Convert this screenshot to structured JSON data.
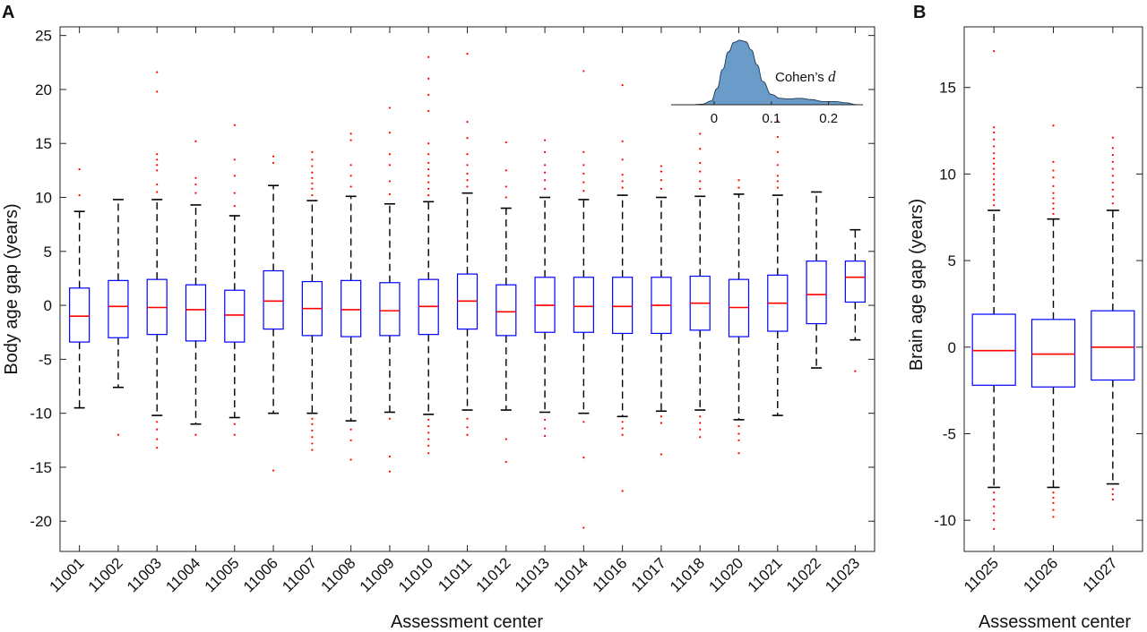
{
  "panels": {
    "a": {
      "letter": "A"
    },
    "b": {
      "letter": "B"
    }
  },
  "chart_data": [
    {
      "type": "box",
      "panel": "A",
      "xlabel": "Assessment center",
      "ylabel": "Body age gap (years)",
      "ylim": [
        -22.8,
        25.8
      ],
      "yticks": [
        25,
        20,
        15,
        10,
        5,
        0,
        -5,
        -10,
        -15,
        -20
      ],
      "grid": false,
      "colors": {
        "box": "#0000ff",
        "median": "#ff0000",
        "whisker": "#000000",
        "outlier": "#ff0000"
      },
      "categories": [
        "11001",
        "11002",
        "11003",
        "11004",
        "11005",
        "11006",
        "11007",
        "11008",
        "11009",
        "11010",
        "11011",
        "11012",
        "11013",
        "11014",
        "11016",
        "11017",
        "11018",
        "11020",
        "11021",
        "11022",
        "11023"
      ],
      "boxes": [
        {
          "q1": -3.4,
          "median": -1.0,
          "q3": 1.6,
          "whisker_low": -9.5,
          "whisker_high": 8.7,
          "outliers": [
            10.2,
            12.6
          ]
        },
        {
          "q1": -3.0,
          "median": -0.1,
          "q3": 2.3,
          "whisker_low": -7.6,
          "whisker_high": 9.8,
          "outliers": [
            -12.0
          ]
        },
        {
          "q1": -2.7,
          "median": -0.2,
          "q3": 2.4,
          "whisker_low": -10.2,
          "whisker_high": 9.8,
          "outliers": [
            10.5,
            11.2,
            12.5,
            13.0,
            13.5,
            14.0,
            19.8,
            21.6,
            -10.8,
            -11.5,
            -12.4,
            -13.2
          ]
        },
        {
          "q1": -3.3,
          "median": -0.4,
          "q3": 1.9,
          "whisker_low": -11.0,
          "whisker_high": 9.3,
          "outliers": [
            10.4,
            11.2,
            11.8,
            15.2,
            -12.0
          ]
        },
        {
          "q1": -3.4,
          "median": -0.9,
          "q3": 1.4,
          "whisker_low": -10.4,
          "whisker_high": 8.3,
          "outliers": [
            9.2,
            10.4,
            12.0,
            13.5,
            16.7,
            -11.0,
            -12.0
          ]
        },
        {
          "q1": -2.2,
          "median": 0.4,
          "q3": 3.2,
          "whisker_low": -10.0,
          "whisker_high": 11.1,
          "outliers": [
            13.2,
            13.8,
            -15.3
          ]
        },
        {
          "q1": -2.8,
          "median": -0.3,
          "q3": 2.2,
          "whisker_low": -10.0,
          "whisker_high": 9.7,
          "outliers": [
            10.2,
            10.8,
            11.3,
            11.8,
            12.3,
            12.9,
            13.5,
            14.2,
            -10.5,
            -11.0,
            -11.6,
            -12.2,
            -12.8,
            -13.4
          ]
        },
        {
          "q1": -2.9,
          "median": -0.4,
          "q3": 2.3,
          "whisker_low": -10.7,
          "whisker_high": 10.1,
          "outliers": [
            11.0,
            12.0,
            13.0,
            15.3,
            15.9,
            -11.5,
            -12.5,
            -14.3
          ]
        },
        {
          "q1": -2.8,
          "median": -0.5,
          "q3": 2.1,
          "whisker_low": -9.9,
          "whisker_high": 9.4,
          "outliers": [
            10.3,
            11.5,
            13.0,
            14.0,
            16.0,
            18.3,
            -10.5,
            -14.0,
            -15.4
          ]
        },
        {
          "q1": -2.7,
          "median": -0.1,
          "q3": 2.4,
          "whisker_low": -10.1,
          "whisker_high": 9.6,
          "outliers": [
            10.2,
            10.8,
            11.4,
            12.0,
            12.6,
            13.2,
            14.0,
            15.0,
            18.0,
            19.5,
            21.0,
            23.0,
            -10.6,
            -11.2,
            -11.8,
            -12.4,
            -13.0,
            -13.7
          ]
        },
        {
          "q1": -2.2,
          "median": 0.4,
          "q3": 2.9,
          "whisker_low": -9.7,
          "whisker_high": 10.4,
          "outliers": [
            11.0,
            11.6,
            12.2,
            13.0,
            14.0,
            15.5,
            17.0,
            23.3,
            -10.5,
            -11.3,
            -12.0
          ]
        },
        {
          "q1": -2.8,
          "median": -0.6,
          "q3": 1.9,
          "whisker_low": -9.7,
          "whisker_high": 9.0,
          "outliers": [
            10.0,
            11.0,
            12.5,
            15.1,
            -12.4,
            -14.5
          ]
        },
        {
          "q1": -2.5,
          "median": 0.0,
          "q3": 2.6,
          "whisker_low": -9.9,
          "whisker_high": 10.0,
          "outliers": [
            10.8,
            11.6,
            12.3,
            13.0,
            14.2,
            15.3,
            -10.6,
            -11.4,
            -12.1
          ]
        },
        {
          "q1": -2.5,
          "median": -0.1,
          "q3": 2.6,
          "whisker_low": -10.0,
          "whisker_high": 9.8,
          "outliers": [
            10.6,
            11.4,
            12.2,
            13.0,
            14.2,
            21.7,
            -10.8,
            -14.1,
            -20.6
          ]
        },
        {
          "q1": -2.6,
          "median": -0.1,
          "q3": 2.6,
          "whisker_low": -10.3,
          "whisker_high": 10.2,
          "outliers": [
            10.9,
            11.5,
            12.1,
            13.5,
            15.2,
            20.4,
            -10.8,
            -11.4,
            -12.0,
            -17.2
          ]
        },
        {
          "q1": -2.6,
          "median": 0.0,
          "q3": 2.6,
          "whisker_low": -9.8,
          "whisker_high": 10.0,
          "outliers": [
            10.8,
            11.6,
            12.4,
            12.9,
            -10.3,
            -10.9,
            -13.8
          ]
        },
        {
          "q1": -2.3,
          "median": 0.2,
          "q3": 2.7,
          "whisker_low": -9.7,
          "whisker_high": 10.1,
          "outliers": [
            10.8,
            11.5,
            12.4,
            13.2,
            14.5,
            15.9,
            -10.3,
            -10.9,
            -11.5,
            -12.2
          ]
        },
        {
          "q1": -2.9,
          "median": -0.2,
          "q3": 2.4,
          "whisker_low": -10.6,
          "whisker_high": 10.3,
          "outliers": [
            10.9,
            11.6,
            -11.2,
            -11.9,
            -12.5,
            -13.7
          ]
        },
        {
          "q1": -2.4,
          "median": 0.2,
          "q3": 2.8,
          "whisker_low": -10.2,
          "whisker_high": 10.2,
          "outliers": [
            10.9,
            11.5,
            12.0,
            13.0,
            14.2,
            15.6,
            17.1
          ]
        },
        {
          "q1": -1.7,
          "median": 1.0,
          "q3": 4.1,
          "whisker_low": -5.8,
          "whisker_high": 10.5,
          "outliers": []
        },
        {
          "q1": 0.3,
          "median": 2.6,
          "q3": 4.1,
          "whisker_low": -3.2,
          "whisker_high": 7.0,
          "outliers": [
            -6.1
          ]
        }
      ],
      "inset": {
        "type": "area",
        "label": "Cohen’s d",
        "xticks": [
          0,
          0.1,
          0.2
        ],
        "xlim": [
          -0.075,
          0.26
        ],
        "color": "#6b9bc9",
        "x": [
          -0.06,
          -0.04,
          -0.02,
          -0.005,
          0.005,
          0.015,
          0.025,
          0.035,
          0.045,
          0.055,
          0.065,
          0.075,
          0.085,
          0.1,
          0.115,
          0.13,
          0.15,
          0.17,
          0.19,
          0.21,
          0.23,
          0.25
        ],
        "density": [
          0.0,
          0.0,
          0.01,
          0.06,
          0.25,
          0.55,
          0.82,
          0.97,
          1.0,
          0.98,
          0.85,
          0.62,
          0.36,
          0.16,
          0.1,
          0.09,
          0.1,
          0.08,
          0.05,
          0.05,
          0.03,
          0.0
        ]
      }
    },
    {
      "type": "box",
      "panel": "B",
      "xlabel": "Assessment center",
      "ylabel": "Brain age gap (years)",
      "ylim": [
        -11.8,
        18.5
      ],
      "yticks": [
        15,
        10,
        5,
        0,
        -5,
        -10
      ],
      "grid": false,
      "colors": {
        "box": "#0000ff",
        "median": "#ff0000",
        "whisker": "#000000",
        "outlier": "#ff0000"
      },
      "categories": [
        "11025",
        "11026",
        "11027"
      ],
      "boxes": [
        {
          "q1": -2.2,
          "median": -0.2,
          "q3": 1.9,
          "whisker_low": -8.1,
          "whisker_high": 7.9,
          "outliers": [
            8.2,
            8.5,
            8.8,
            9.1,
            9.4,
            9.7,
            10.0,
            10.3,
            10.6,
            10.9,
            11.2,
            11.6,
            12.0,
            12.4,
            12.7,
            17.1,
            -8.4,
            -8.8,
            -9.2,
            -9.6,
            -10.0,
            -10.5
          ]
        },
        {
          "q1": -2.3,
          "median": -0.4,
          "q3": 1.6,
          "whisker_low": -8.1,
          "whisker_high": 7.4,
          "outliers": [
            7.7,
            8.0,
            8.3,
            8.6,
            8.9,
            9.3,
            9.8,
            10.2,
            10.7,
            12.8,
            -8.4,
            -8.7,
            -9.0,
            -9.4,
            -9.8
          ]
        },
        {
          "q1": -1.9,
          "median": 0.0,
          "q3": 2.1,
          "whisker_low": -7.9,
          "whisker_high": 7.9,
          "outliers": [
            8.3,
            8.7,
            9.1,
            9.5,
            9.9,
            10.3,
            10.7,
            11.1,
            11.5,
            12.1,
            -8.2,
            -8.5,
            -8.8
          ]
        }
      ]
    }
  ]
}
